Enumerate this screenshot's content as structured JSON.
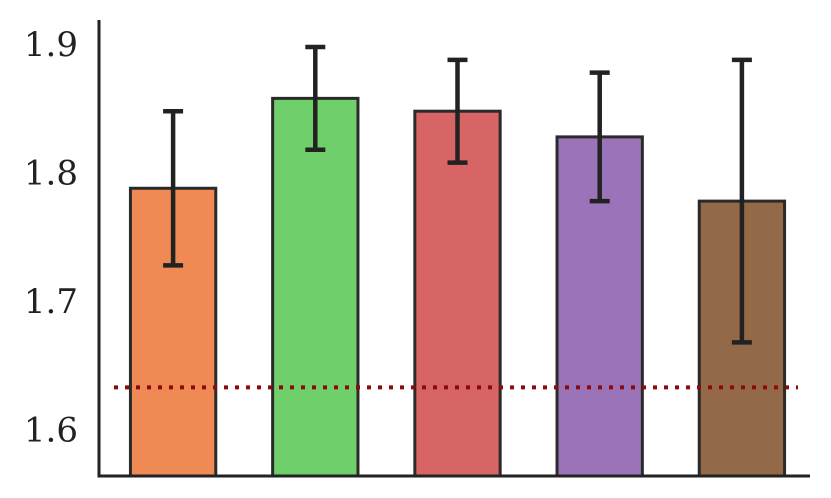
{
  "chart_data": {
    "type": "bar",
    "categories": [
      null,
      null,
      null,
      null,
      null
    ],
    "values": [
      1.79,
      1.86,
      1.85,
      1.83,
      1.78
    ],
    "errors": [
      0.06,
      0.04,
      0.04,
      0.05,
      0.11
    ],
    "colors": [
      "#ef8a54",
      "#6fcf6b",
      "#d76565",
      "#9b73b8",
      "#936947"
    ],
    "ylim": [
      1.566,
      1.921
    ],
    "yticks": [
      1.6,
      1.7,
      1.8,
      1.9
    ],
    "grid": false,
    "reference_line": {
      "value": 1.635,
      "color": "#8b0a0a"
    }
  }
}
